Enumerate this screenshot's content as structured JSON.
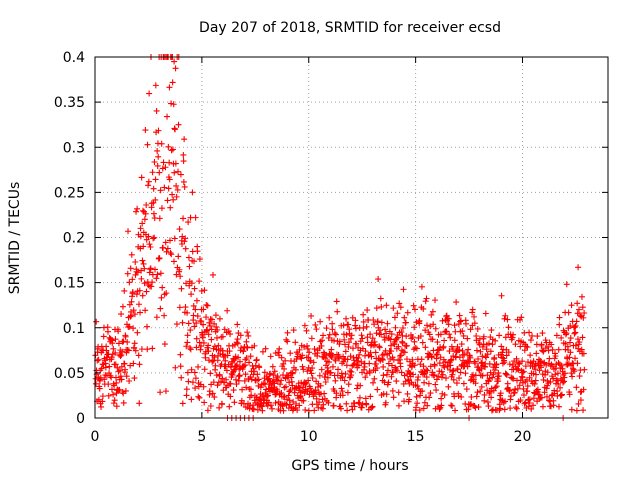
{
  "chart_data": {
    "type": "scatter",
    "title": "Day 207 of 2018, SRMTID for receiver ecsd",
    "xlabel": "GPS time / hours",
    "ylabel": "SRMTID / TECUs",
    "xlim": [
      0,
      24
    ],
    "ylim": [
      0,
      0.4
    ],
    "xticks": [
      0,
      5,
      10,
      15,
      20
    ],
    "xtick_labels": [
      "0",
      "5",
      "10",
      "15",
      "20"
    ],
    "yticks": [
      0,
      0.05,
      0.1,
      0.15,
      0.2,
      0.25,
      0.3,
      0.35,
      0.4
    ],
    "ytick_labels": [
      "0",
      "0.05",
      "0.1",
      "0.15",
      "0.2",
      "0.25",
      "0.3",
      "0.35",
      "0.4"
    ],
    "grid": true,
    "marker": "plus",
    "color": "#ff0000",
    "series": [
      {
        "name": "SRMTID",
        "profile": {
          "x": [
            0,
            0.5,
            1.0,
            1.5,
            2.0,
            2.5,
            2.9,
            3.3,
            3.7,
            4.1,
            4.5,
            4.9,
            5.3,
            5.8,
            6.3,
            7.0,
            7.5,
            8.0,
            9.0,
            10.0,
            11.0,
            12.0,
            13.0,
            14.0,
            15.0,
            16.0,
            17.0,
            18.0,
            19.0,
            20.0,
            21.0,
            21.5,
            22.0,
            22.5,
            22.9
          ],
          "y": [
            0.055,
            0.06,
            0.055,
            0.09,
            0.14,
            0.19,
            0.25,
            0.28,
            0.25,
            0.19,
            0.14,
            0.09,
            0.075,
            0.065,
            0.055,
            0.045,
            0.035,
            0.03,
            0.04,
            0.05,
            0.055,
            0.065,
            0.07,
            0.065,
            0.065,
            0.07,
            0.06,
            0.055,
            0.055,
            0.055,
            0.05,
            0.045,
            0.065,
            0.08,
            0.075
          ]
        },
        "max_values": [
          {
            "x": 3.0,
            "y": 0.4
          },
          {
            "x": 3.7,
            "y": 0.395
          },
          {
            "x": 22.6,
            "y": 0.167
          }
        ],
        "zero_values_x": [
          6.2,
          6.4,
          6.6,
          6.8,
          7.0,
          7.2,
          7.4,
          17.5,
          21.9
        ]
      }
    ]
  }
}
